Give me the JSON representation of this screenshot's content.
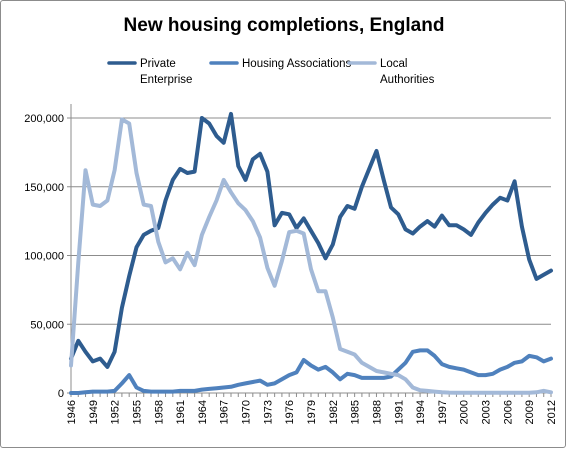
{
  "chart_data": {
    "type": "line",
    "title": "New housing completions, England",
    "xlabel": "",
    "ylabel": "",
    "ylim": [
      0,
      200000
    ],
    "yticks": [
      0,
      50000,
      100000,
      150000,
      200000
    ],
    "ytick_labels": [
      "0",
      "50,000",
      "100,000",
      "150,000",
      "200,000"
    ],
    "xlim": [
      1946,
      2012
    ],
    "xticks": [
      1946,
      1949,
      1952,
      1955,
      1958,
      1961,
      1964,
      1967,
      1970,
      1973,
      1976,
      1979,
      1982,
      1985,
      1988,
      1991,
      1994,
      1997,
      2000,
      2003,
      2006,
      2009,
      2012
    ],
    "xtick_labels": [
      "1946",
      "1949",
      "1952",
      "1955",
      "1958",
      "1961",
      "1964",
      "1967",
      "1970",
      "1973",
      "1976",
      "1979",
      "1982",
      "1985",
      "1988",
      "1991",
      "1994",
      "1997",
      "2000",
      "2003",
      "2006",
      "2009",
      "2012"
    ],
    "grid": "horizontal",
    "legend_position": "top",
    "x": [
      1946,
      1947,
      1948,
      1949,
      1950,
      1951,
      1952,
      1953,
      1954,
      1955,
      1956,
      1957,
      1958,
      1959,
      1960,
      1961,
      1962,
      1963,
      1964,
      1965,
      1966,
      1967,
      1968,
      1969,
      1970,
      1971,
      1972,
      1973,
      1974,
      1975,
      1976,
      1977,
      1978,
      1979,
      1980,
      1981,
      1982,
      1983,
      1984,
      1985,
      1986,
      1987,
      1988,
      1989,
      1990,
      1991,
      1992,
      1993,
      1994,
      1995,
      1996,
      1997,
      1998,
      1999,
      2000,
      2001,
      2002,
      2003,
      2004,
      2005,
      2006,
      2007,
      2008,
      2009,
      2010,
      2011,
      2012
    ],
    "series": [
      {
        "name": "Private Enterprise",
        "legend_lines": [
          "Private",
          "Enterprise"
        ],
        "color": "#2e5c8f",
        "values": [
          25000,
          38000,
          30000,
          23000,
          25000,
          19000,
          30000,
          62000,
          85000,
          106000,
          115000,
          118000,
          120000,
          140000,
          155000,
          163000,
          160000,
          161000,
          200000,
          196000,
          187000,
          182000,
          203000,
          165000,
          155000,
          170000,
          174000,
          161000,
          122000,
          131000,
          130000,
          120000,
          127000,
          118000,
          109000,
          98000,
          108000,
          128000,
          136000,
          134000,
          150000,
          163000,
          176000,
          155000,
          135000,
          130000,
          119000,
          116000,
          121000,
          125000,
          121000,
          129000,
          122000,
          122000,
          119000,
          115000,
          124000,
          131000,
          137000,
          142000,
          140000,
          154000,
          121000,
          97000,
          83000,
          86000,
          89000
        ]
      },
      {
        "name": "Housing Associations",
        "legend_lines": [
          "Housing Associations"
        ],
        "color": "#4f81bd",
        "values": [
          0,
          0,
          500,
          1000,
          1000,
          1000,
          1500,
          7000,
          13000,
          4000,
          1500,
          1000,
          1000,
          1000,
          1000,
          1500,
          1500,
          1500,
          2500,
          3000,
          3500,
          4000,
          4500,
          6000,
          7000,
          8000,
          9000,
          6000,
          7000,
          10000,
          13000,
          15000,
          24000,
          20000,
          17000,
          19000,
          15000,
          10000,
          14000,
          13000,
          11000,
          11000,
          11000,
          11000,
          12000,
          17000,
          22000,
          30000,
          31000,
          31000,
          27000,
          21000,
          19000,
          18000,
          17000,
          15000,
          13000,
          13000,
          14000,
          17000,
          19000,
          22000,
          23000,
          27000,
          26000,
          23000,
          25000
        ]
      },
      {
        "name": "Local Authorities",
        "legend_lines": [
          "Local",
          "Authorities"
        ],
        "color": "#a3b9d8",
        "values": [
          20000,
          95000,
          162000,
          137000,
          136000,
          140000,
          162000,
          199000,
          196000,
          160000,
          137000,
          136000,
          110000,
          95000,
          98000,
          90000,
          102000,
          93000,
          115000,
          128000,
          140000,
          155000,
          146000,
          138000,
          133000,
          125000,
          113000,
          91000,
          78000,
          96000,
          117000,
          118000,
          116000,
          90000,
          74000,
          74000,
          55000,
          32000,
          30000,
          28000,
          22000,
          19000,
          16000,
          15000,
          14000,
          13000,
          10000,
          4000,
          2000,
          1500,
          1000,
          500,
          300,
          200,
          200,
          200,
          200,
          200,
          200,
          200,
          200,
          200,
          200,
          200,
          500,
          1500,
          500
        ]
      }
    ]
  }
}
